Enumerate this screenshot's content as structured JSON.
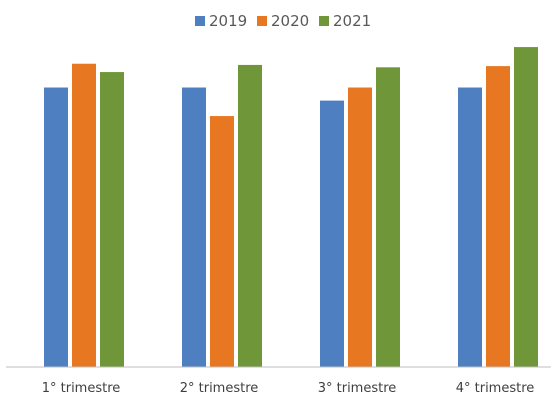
{
  "chart_data": {
    "type": "bar",
    "categories": [
      "1° trimestre",
      "2° trimestre",
      "3° trimestre",
      "4° trimestre"
    ],
    "series": [
      {
        "name": "2019",
        "color": "#4E7FC1",
        "values": [
          235,
          235,
          224,
          235
        ]
      },
      {
        "name": "2020",
        "color": "#E87722",
        "values": [
          255,
          211,
          235,
          253
        ]
      },
      {
        "name": "2021",
        "color": "#70963A",
        "values": [
          248,
          254,
          252,
          269
        ]
      }
    ],
    "ylim": [
      0,
      280
    ],
    "grid": false,
    "legend": "top-center",
    "baseline_color": "#BFBFBF"
  }
}
